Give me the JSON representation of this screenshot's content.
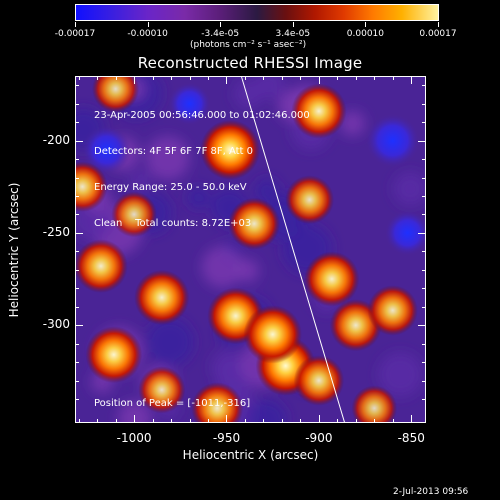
{
  "colorbar": {
    "tick_labels": [
      "-0.00017",
      "-0.00010",
      "-3.4e-05",
      "3.4e-05",
      "0.00010",
      "0.00017"
    ],
    "units": "(photons cm⁻² s⁻¹ asec⁻²)",
    "range": [
      -0.00017,
      0.00017
    ]
  },
  "chart_data": {
    "type": "heatmap",
    "title": "Reconstructed RHESSI Image",
    "xlabel": "Heliocentric X (arcsec)",
    "ylabel": "Heliocentric Y (arcsec)",
    "xlim": [
      -1032,
      -842
    ],
    "ylim": [
      -353,
      -165
    ],
    "x_ticks": [
      "-1000",
      "-950",
      "-900",
      "-850"
    ],
    "y_ticks": [
      "-200",
      "-250",
      "-300"
    ],
    "x_tick_values": [
      -1000,
      -950,
      -900,
      -850
    ],
    "y_tick_values": [
      -200,
      -250,
      -300
    ],
    "info_lines": [
      "23-Apr-2005 00:56:46.000 to 01:02:46.000",
      "Detectors: 4F 5F 6F 7F 8F, Att 0",
      "Energy Range: 25.0 - 50.0 keV",
      "Clean    Total counts: 8.72E+03"
    ],
    "peak_text": "Position of Peak = [-1011,-316]",
    "peak": [
      -1011,
      -316
    ],
    "limb_line": [
      [
        -942,
        -165
      ],
      [
        -886,
        -353
      ]
    ],
    "sources": [
      {
        "x": -948,
        "y": -205,
        "intensity": 1.0
      },
      {
        "x": -900,
        "y": -184,
        "intensity": 0.85
      },
      {
        "x": -1010,
        "y": -172,
        "intensity": 0.6
      },
      {
        "x": -935,
        "y": -245,
        "intensity": 0.75
      },
      {
        "x": -905,
        "y": -232,
        "intensity": 0.65
      },
      {
        "x": -1000,
        "y": -240,
        "intensity": 0.55
      },
      {
        "x": -1028,
        "y": -225,
        "intensity": 0.7
      },
      {
        "x": -1018,
        "y": -268,
        "intensity": 0.8
      },
      {
        "x": -985,
        "y": -285,
        "intensity": 0.85
      },
      {
        "x": -945,
        "y": -295,
        "intensity": 0.9
      },
      {
        "x": -918,
        "y": -322,
        "intensity": 1.0
      },
      {
        "x": -925,
        "y": -305,
        "intensity": 0.95
      },
      {
        "x": -893,
        "y": -275,
        "intensity": 0.85
      },
      {
        "x": -880,
        "y": -300,
        "intensity": 0.75
      },
      {
        "x": -860,
        "y": -292,
        "intensity": 0.7
      },
      {
        "x": -1011,
        "y": -316,
        "intensity": 0.9
      },
      {
        "x": -985,
        "y": -335,
        "intensity": 0.6
      },
      {
        "x": -955,
        "y": -345,
        "intensity": 0.75
      },
      {
        "x": -900,
        "y": -330,
        "intensity": 0.7
      },
      {
        "x": -870,
        "y": -345,
        "intensity": 0.55
      }
    ],
    "negatives": [
      {
        "x": -1015,
        "y": -205,
        "intensity": 0.6
      },
      {
        "x": -860,
        "y": -200,
        "intensity": 0.8
      },
      {
        "x": -852,
        "y": -250,
        "intensity": 0.5
      },
      {
        "x": -970,
        "y": -180,
        "intensity": 0.4
      }
    ]
  },
  "timestamp": "2-Jul-2013 09:56"
}
